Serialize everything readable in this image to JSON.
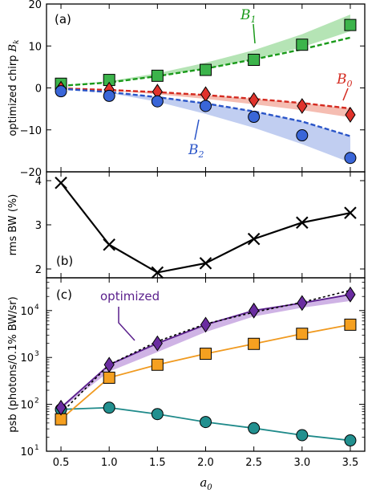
{
  "chart_data": [
    {
      "panel": "(a)",
      "type": "scatter",
      "ylabel": "optimized chirp B_k",
      "ylim": [
        -20,
        20
      ],
      "yticks": [
        "−20",
        "−10",
        "0",
        "10",
        "20"
      ],
      "x": [
        0.5,
        1.0,
        1.5,
        2.0,
        2.5,
        3.0,
        3.5
      ],
      "series": [
        {
          "name": "B1",
          "label_main": "B",
          "label_sub": "1",
          "color": "#1a9a1a",
          "fill": "#3cb44b",
          "band_color": "#a8dfa8",
          "marker": "square",
          "values": [
            1.0,
            1.9,
            2.9,
            4.3,
            6.7,
            10.3,
            15.0
          ],
          "fit": [
            0.5,
            1.3,
            2.8,
            4.6,
            6.8,
            9.2,
            12.0
          ],
          "band_low": [
            0.5,
            1.3,
            2.8,
            4.6,
            6.8,
            9.7,
            13.5
          ],
          "band_high": [
            0.5,
            1.6,
            3.5,
            6.0,
            9.0,
            12.8,
            17.5
          ]
        },
        {
          "name": "B0",
          "label_main": "B",
          "label_sub": "0",
          "color": "#d42a20",
          "fill": "#e0332c",
          "band_color": "#f3b2a4",
          "marker": "diamond",
          "values": [
            -0.2,
            -0.4,
            -0.9,
            -1.5,
            -2.9,
            -4.3,
            -6.4
          ],
          "fit": [
            -0.1,
            -0.5,
            -1.0,
            -1.7,
            -2.6,
            -3.6,
            -4.9
          ],
          "band_low": [
            -0.1,
            -0.6,
            -1.5,
            -2.6,
            -3.9,
            -5.3,
            -7.0
          ],
          "band_high": [
            -0.1,
            -0.5,
            -1.0,
            -1.7,
            -2.6,
            -3.6,
            -4.9
          ]
        },
        {
          "name": "B2",
          "label_main": "B",
          "label_sub": "2",
          "color": "#2a55c8",
          "fill": "#3a66d8",
          "band_color": "#b6c6ef",
          "marker": "circle",
          "values": [
            -0.8,
            -1.9,
            -3.2,
            -4.3,
            -6.9,
            -11.3,
            -16.7
          ],
          "fit": [
            -0.2,
            -1.0,
            -2.2,
            -3.7,
            -5.6,
            -8.0,
            -11.5
          ],
          "band_low": [
            -0.2,
            -1.2,
            -3.3,
            -6.2,
            -9.5,
            -13.4,
            -17.8
          ],
          "band_high": [
            -0.2,
            -1.0,
            -2.2,
            -3.7,
            -5.6,
            -8.0,
            -11.5
          ]
        }
      ]
    },
    {
      "panel": "(b)",
      "type": "line",
      "ylabel": "rms BW (%)",
      "ylim": [
        1.8,
        4.2
      ],
      "yticks": [
        "2",
        "3",
        "4"
      ],
      "x": [
        0.5,
        1.0,
        1.5,
        2.0,
        2.5,
        3.0,
        3.5
      ],
      "series": [
        {
          "color": "#000000",
          "marker": "x",
          "values": [
            3.95,
            2.55,
            1.92,
            2.13,
            2.68,
            3.05,
            3.27
          ]
        }
      ]
    },
    {
      "panel": "(c)",
      "type": "line",
      "ylabel": "psb (photons/0.1% BW/sr)",
      "xlabel_main": "a",
      "xlabel_sub": "0",
      "y_scale": "log",
      "ylim": [
        10,
        50000
      ],
      "yticks": [
        {
          "base": "10",
          "exp": "1"
        },
        {
          "base": "10",
          "exp": "2"
        },
        {
          "base": "10",
          "exp": "3"
        },
        {
          "base": "10",
          "exp": "4"
        }
      ],
      "xticks": [
        "0.5",
        "1.0",
        "1.5",
        "2.0",
        "2.5",
        "3.0",
        "3.5"
      ],
      "x": [
        0.5,
        1.0,
        1.5,
        2.0,
        2.5,
        3.0,
        3.5
      ],
      "annotation": "optimized",
      "series": [
        {
          "color": "#5a1f8c",
          "fill": "#6a2ca0",
          "band_color": "#c7a6e0",
          "marker": "diamond",
          "values": [
            85,
            700,
            2000,
            5000,
            10000,
            14500,
            22000
          ],
          "band_low": [
            80,
            500,
            1300,
            3500,
            7500,
            11500,
            16000
          ],
          "band_high": [
            90,
            700,
            2000,
            5000,
            10000,
            14500,
            23000
          ]
        },
        {
          "color": "#f09a20",
          "fill": "#f5a020",
          "marker": "square",
          "values": [
            48,
            370,
            700,
            1200,
            1950,
            3200,
            5000
          ]
        },
        {
          "color": "#1f8a8a",
          "fill": "#22908f",
          "marker": "circle",
          "values": [
            78,
            85,
            62,
            42,
            31,
            22,
            17
          ]
        },
        {
          "color": "#000000",
          "marker": "none",
          "dashed": true,
          "values": [
            65,
            700,
            2200,
            5200,
            9200,
            15000,
            27000
          ]
        }
      ]
    }
  ]
}
